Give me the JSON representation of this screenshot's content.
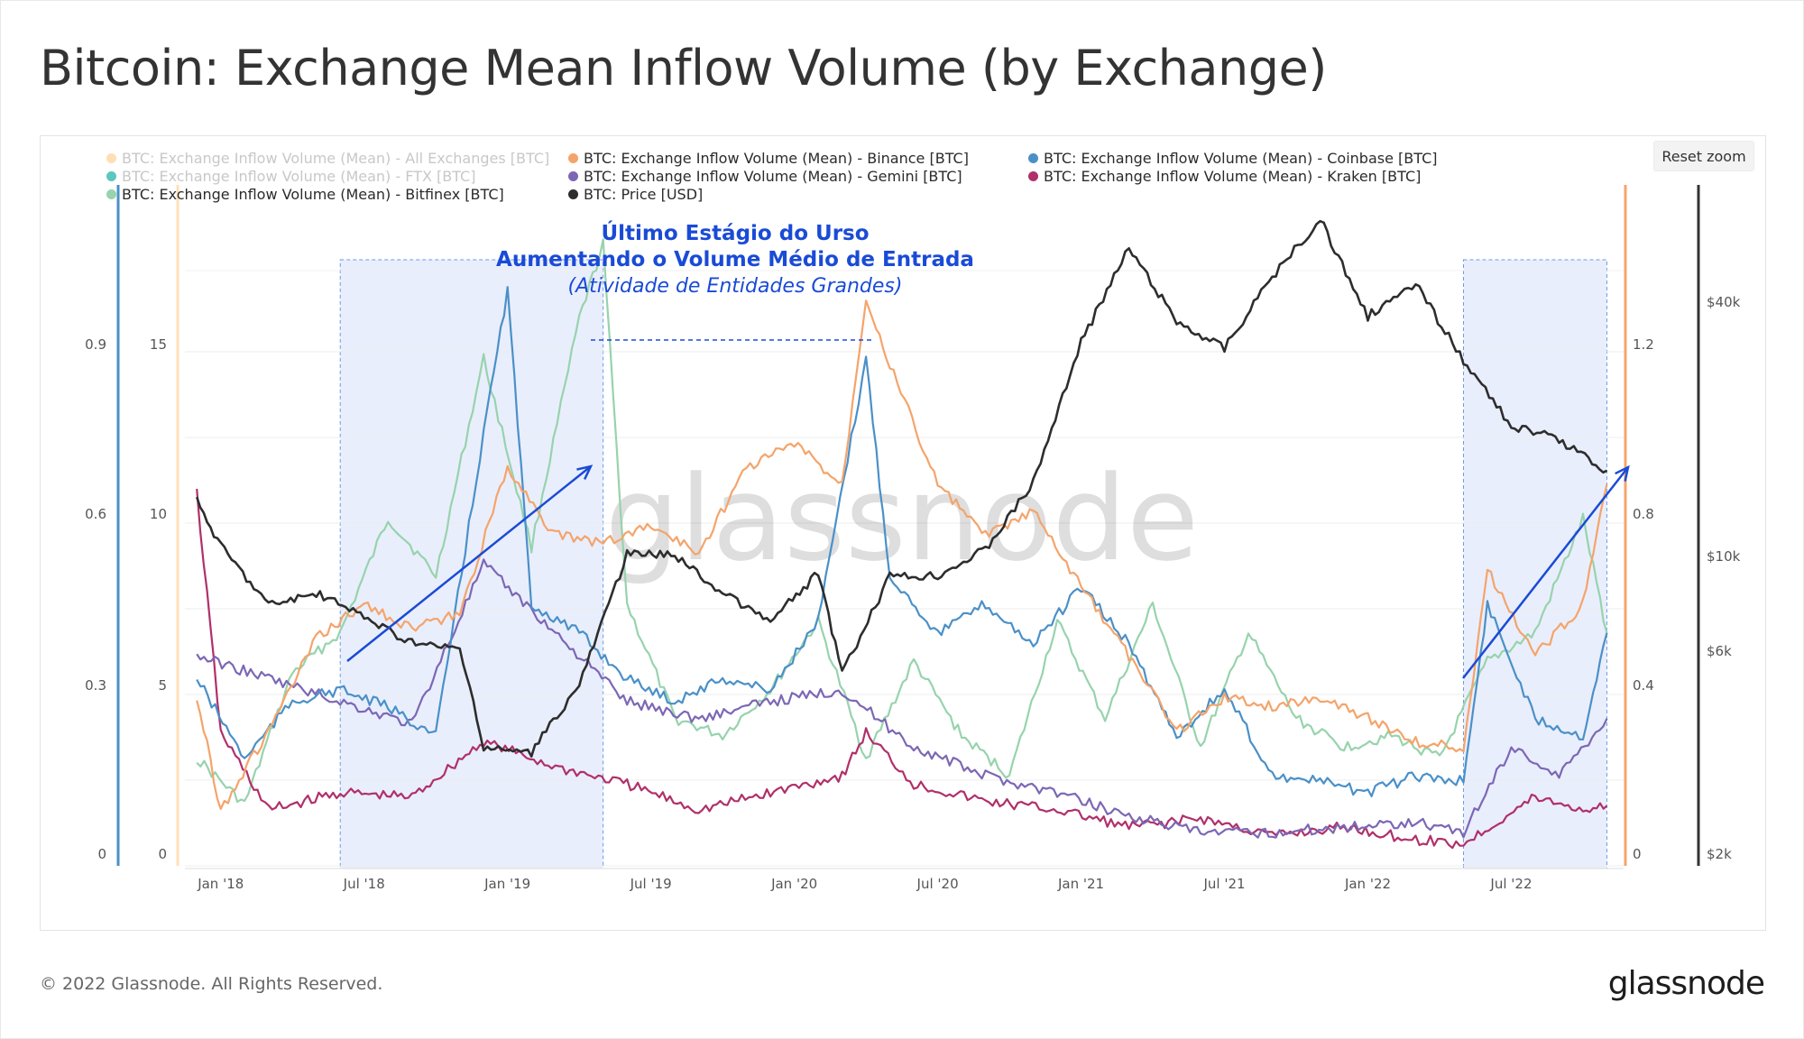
{
  "title": "Bitcoin: Exchange Mean Inflow Volume (by Exchange)",
  "reset_zoom": "Reset zoom",
  "watermark": "glassnode",
  "footer": {
    "copyright": "© 2022 Glassnode. All Rights Reserved.",
    "logo": "glassnode"
  },
  "annotation": {
    "line1": "Último Estágio do Urso",
    "line2": "Aumentando o Volume  Médio de Entrada",
    "line3": "(Atividade de Entidades Grandes)"
  },
  "colors": {
    "all": "#ffdfb3",
    "binance": "#f4a46b",
    "coinbase": "#4a90c8",
    "ftx": "#5cc6bf",
    "gemini": "#7c67b5",
    "kraken": "#b0306a",
    "bitfinex": "#97d3ad",
    "price": "#2d2d2d",
    "annotation": "#1a4bd6",
    "highlight": "#e9eefc"
  },
  "legend": [
    {
      "label": "BTC: Exchange Inflow Volume (Mean) - All Exchanges [BTC]",
      "color": "#ffdfb3",
      "active": false
    },
    {
      "label": "BTC: Exchange Inflow Volume (Mean) - Binance [BTC]",
      "color": "#f4a46b",
      "active": true
    },
    {
      "label": "BTC: Exchange Inflow Volume (Mean) - Coinbase [BTC]",
      "color": "#4a90c8",
      "active": true
    },
    {
      "label": "BTC: Exchange Inflow Volume (Mean) - FTX [BTC]",
      "color": "#5cc6bf",
      "active": false
    },
    {
      "label": "BTC: Exchange Inflow Volume (Mean) - Gemini [BTC]",
      "color": "#7c67b5",
      "active": true
    },
    {
      "label": "BTC: Exchange Inflow Volume (Mean) - Kraken [BTC]",
      "color": "#b0306a",
      "active": true
    },
    {
      "label": "BTC: Exchange Inflow Volume (Mean) - Bitfinex [BTC]",
      "color": "#97d3ad",
      "active": true
    },
    {
      "label": "BTC: Price [USD]",
      "color": "#2d2d2d",
      "active": true
    }
  ],
  "chart_data": {
    "type": "line",
    "x_ticks": [
      "Jan '18",
      "Jul '18",
      "Jan '19",
      "Jul '19",
      "Jan '20",
      "Jul '20",
      "Jan '21",
      "Jul '21",
      "Jan '22",
      "Jul '22"
    ],
    "y_axes": {
      "left_outer": {
        "ticks": [
          "0",
          "0.3",
          "0.6",
          "0.9"
        ],
        "values": [
          0,
          0.3,
          0.6,
          0.9
        ],
        "series": "Coinbase"
      },
      "left_inner": {
        "ticks": [
          "0",
          "5",
          "10",
          "15"
        ],
        "values": [
          0,
          5,
          10,
          15
        ],
        "series": "Binance"
      },
      "right_inner": {
        "ticks": [
          "0",
          "0.4",
          "0.8",
          "1.2"
        ],
        "values": [
          0,
          0.4,
          0.8,
          1.2
        ],
        "series": "Kraken"
      },
      "right_outer": {
        "ticks": [
          "$2k",
          "$6k",
          "$10k",
          "$40k"
        ],
        "values": [
          2000,
          6000,
          10000,
          40000
        ],
        "scale": "log",
        "series": "BTC: Price [USD]"
      }
    },
    "highlight_ranges": [
      [
        "2018-06",
        "2019-05"
      ],
      [
        "2022-05",
        "2022-11"
      ]
    ],
    "series": [
      {
        "name": "BTC: Exchange Inflow Volume (Mean) - Binance [BTC]",
        "key": "binance",
        "points": [
          [
            "2017-12",
            4.8
          ],
          [
            "2018-01",
            1.5
          ],
          [
            "2018-03",
            3.8
          ],
          [
            "2018-05",
            6.5
          ],
          [
            "2018-07",
            7.5
          ],
          [
            "2018-09",
            6.8
          ],
          [
            "2018-11",
            7.2
          ],
          [
            "2019-01",
            11.5
          ],
          [
            "2019-03",
            9.5
          ],
          [
            "2019-05",
            9.3
          ],
          [
            "2019-07",
            9.8
          ],
          [
            "2019-09",
            9.0
          ],
          [
            "2019-11",
            11.5
          ],
          [
            "2020-01",
            12.2
          ],
          [
            "2020-03",
            11.0
          ],
          [
            "2020-04",
            16.5
          ],
          [
            "2020-05",
            14.5
          ],
          [
            "2020-07",
            11.0
          ],
          [
            "2020-09",
            9.5
          ],
          [
            "2020-11",
            10.2
          ],
          [
            "2021-01",
            8.0
          ],
          [
            "2021-03",
            6.0
          ],
          [
            "2021-05",
            3.8
          ],
          [
            "2021-07",
            4.8
          ],
          [
            "2021-09",
            4.5
          ],
          [
            "2021-11",
            4.8
          ],
          [
            "2022-01",
            4.2
          ],
          [
            "2022-03",
            3.5
          ],
          [
            "2022-05",
            3.3
          ],
          [
            "2022-06",
            8.5
          ],
          [
            "2022-08",
            6.0
          ],
          [
            "2022-10",
            7.5
          ],
          [
            "2022-11",
            11.0
          ]
        ]
      },
      {
        "name": "BTC: Exchange Inflow Volume (Mean) - Coinbase [BTC]",
        "key": "coinbase",
        "points": [
          [
            "2017-12",
            0.32
          ],
          [
            "2018-02",
            0.18
          ],
          [
            "2018-04",
            0.28
          ],
          [
            "2018-06",
            0.3
          ],
          [
            "2018-08",
            0.27
          ],
          [
            "2018-10",
            0.22
          ],
          [
            "2018-12",
            0.75
          ],
          [
            "2019-01",
            1.0
          ],
          [
            "2019-02",
            0.45
          ],
          [
            "2019-04",
            0.4
          ],
          [
            "2019-06",
            0.32
          ],
          [
            "2019-08",
            0.28
          ],
          [
            "2019-10",
            0.32
          ],
          [
            "2019-12",
            0.3
          ],
          [
            "2020-02",
            0.42
          ],
          [
            "2020-04",
            0.88
          ],
          [
            "2020-05",
            0.5
          ],
          [
            "2020-07",
            0.4
          ],
          [
            "2020-09",
            0.45
          ],
          [
            "2020-11",
            0.38
          ],
          [
            "2021-01",
            0.48
          ],
          [
            "2021-03",
            0.38
          ],
          [
            "2021-05",
            0.22
          ],
          [
            "2021-07",
            0.3
          ],
          [
            "2021-09",
            0.15
          ],
          [
            "2021-11",
            0.14
          ],
          [
            "2022-01",
            0.12
          ],
          [
            "2022-03",
            0.15
          ],
          [
            "2022-05",
            0.14
          ],
          [
            "2022-06",
            0.45
          ],
          [
            "2022-08",
            0.25
          ],
          [
            "2022-10",
            0.22
          ],
          [
            "2022-11",
            0.4
          ]
        ]
      },
      {
        "name": "BTC: Exchange Inflow Volume (Mean) - Gemini [BTC]",
        "key": "gemini",
        "points": [
          [
            "2017-12",
            0.36
          ],
          [
            "2018-03",
            0.32
          ],
          [
            "2018-06",
            0.28
          ],
          [
            "2018-09",
            0.24
          ],
          [
            "2018-12",
            0.52
          ],
          [
            "2019-03",
            0.4
          ],
          [
            "2019-06",
            0.28
          ],
          [
            "2019-09",
            0.25
          ],
          [
            "2019-12",
            0.28
          ],
          [
            "2020-03",
            0.3
          ],
          [
            "2020-06",
            0.2
          ],
          [
            "2020-09",
            0.15
          ],
          [
            "2020-12",
            0.12
          ],
          [
            "2021-03",
            0.08
          ],
          [
            "2021-06",
            0.05
          ],
          [
            "2021-09",
            0.05
          ],
          [
            "2021-12",
            0.06
          ],
          [
            "2022-03",
            0.07
          ],
          [
            "2022-05",
            0.05
          ],
          [
            "2022-07",
            0.2
          ],
          [
            "2022-09",
            0.15
          ],
          [
            "2022-11",
            0.25
          ]
        ]
      },
      {
        "name": "BTC: Exchange Inflow Volume (Mean) - Kraken [BTC]",
        "key": "kraken",
        "points": [
          [
            "2017-12",
            0.86
          ],
          [
            "2018-01",
            0.3
          ],
          [
            "2018-03",
            0.12
          ],
          [
            "2018-06",
            0.16
          ],
          [
            "2018-09",
            0.15
          ],
          [
            "2018-12",
            0.28
          ],
          [
            "2019-03",
            0.22
          ],
          [
            "2019-06",
            0.18
          ],
          [
            "2019-09",
            0.12
          ],
          [
            "2019-12",
            0.16
          ],
          [
            "2020-03",
            0.2
          ],
          [
            "2020-04",
            0.3
          ],
          [
            "2020-06",
            0.18
          ],
          [
            "2020-09",
            0.14
          ],
          [
            "2020-12",
            0.12
          ],
          [
            "2021-03",
            0.08
          ],
          [
            "2021-06",
            0.1
          ],
          [
            "2021-09",
            0.06
          ],
          [
            "2021-12",
            0.08
          ],
          [
            "2022-03",
            0.05
          ],
          [
            "2022-05",
            0.04
          ],
          [
            "2022-08",
            0.15
          ],
          [
            "2022-10",
            0.12
          ],
          [
            "2022-11",
            0.13
          ]
        ]
      },
      {
        "name": "BTC: Exchange Inflow Volume (Mean) - Bitfinex [BTC]",
        "key": "bitfinex",
        "points": [
          [
            "2017-12",
            0.18
          ],
          [
            "2018-02",
            0.1
          ],
          [
            "2018-04",
            0.33
          ],
          [
            "2018-06",
            0.4
          ],
          [
            "2018-08",
            0.6
          ],
          [
            "2018-10",
            0.5
          ],
          [
            "2018-12",
            0.88
          ],
          [
            "2019-02",
            0.55
          ],
          [
            "2019-04",
            0.95
          ],
          [
            "2019-05",
            1.08
          ],
          [
            "2019-06",
            0.45
          ],
          [
            "2019-08",
            0.25
          ],
          [
            "2019-10",
            0.22
          ],
          [
            "2019-12",
            0.3
          ],
          [
            "2020-02",
            0.42
          ],
          [
            "2020-04",
            0.18
          ],
          [
            "2020-06",
            0.35
          ],
          [
            "2020-08",
            0.22
          ],
          [
            "2020-10",
            0.15
          ],
          [
            "2020-12",
            0.42
          ],
          [
            "2021-02",
            0.25
          ],
          [
            "2021-04",
            0.45
          ],
          [
            "2021-06",
            0.2
          ],
          [
            "2021-08",
            0.4
          ],
          [
            "2021-10",
            0.25
          ],
          [
            "2021-12",
            0.2
          ],
          [
            "2022-02",
            0.22
          ],
          [
            "2022-04",
            0.18
          ],
          [
            "2022-06",
            0.35
          ],
          [
            "2022-08",
            0.4
          ],
          [
            "2022-10",
            0.6
          ],
          [
            "2022-11",
            0.4
          ]
        ]
      },
      {
        "name": "BTC: Price [USD]",
        "key": "price",
        "points": [
          [
            "2017-12",
            14000
          ],
          [
            "2018-01",
            11000
          ],
          [
            "2018-03",
            8000
          ],
          [
            "2018-05",
            8500
          ],
          [
            "2018-07",
            7500
          ],
          [
            "2018-09",
            6500
          ],
          [
            "2018-11",
            6300
          ],
          [
            "2018-12",
            3700
          ],
          [
            "2019-02",
            3600
          ],
          [
            "2019-04",
            5200
          ],
          [
            "2019-06",
            10500
          ],
          [
            "2019-08",
            10500
          ],
          [
            "2019-10",
            8500
          ],
          [
            "2019-12",
            7300
          ],
          [
            "2020-02",
            9500
          ],
          [
            "2020-03",
            5500
          ],
          [
            "2020-05",
            9300
          ],
          [
            "2020-07",
            9400
          ],
          [
            "2020-09",
            10800
          ],
          [
            "2020-11",
            15500
          ],
          [
            "2021-01",
            33000
          ],
          [
            "2021-03",
            55000
          ],
          [
            "2021-05",
            37000
          ],
          [
            "2021-07",
            32000
          ],
          [
            "2021-09",
            47000
          ],
          [
            "2021-11",
            64000
          ],
          [
            "2022-01",
            38000
          ],
          [
            "2022-03",
            45000
          ],
          [
            "2022-05",
            30000
          ],
          [
            "2022-07",
            21000
          ],
          [
            "2022-09",
            19500
          ],
          [
            "2022-11",
            16500
          ]
        ]
      }
    ]
  }
}
